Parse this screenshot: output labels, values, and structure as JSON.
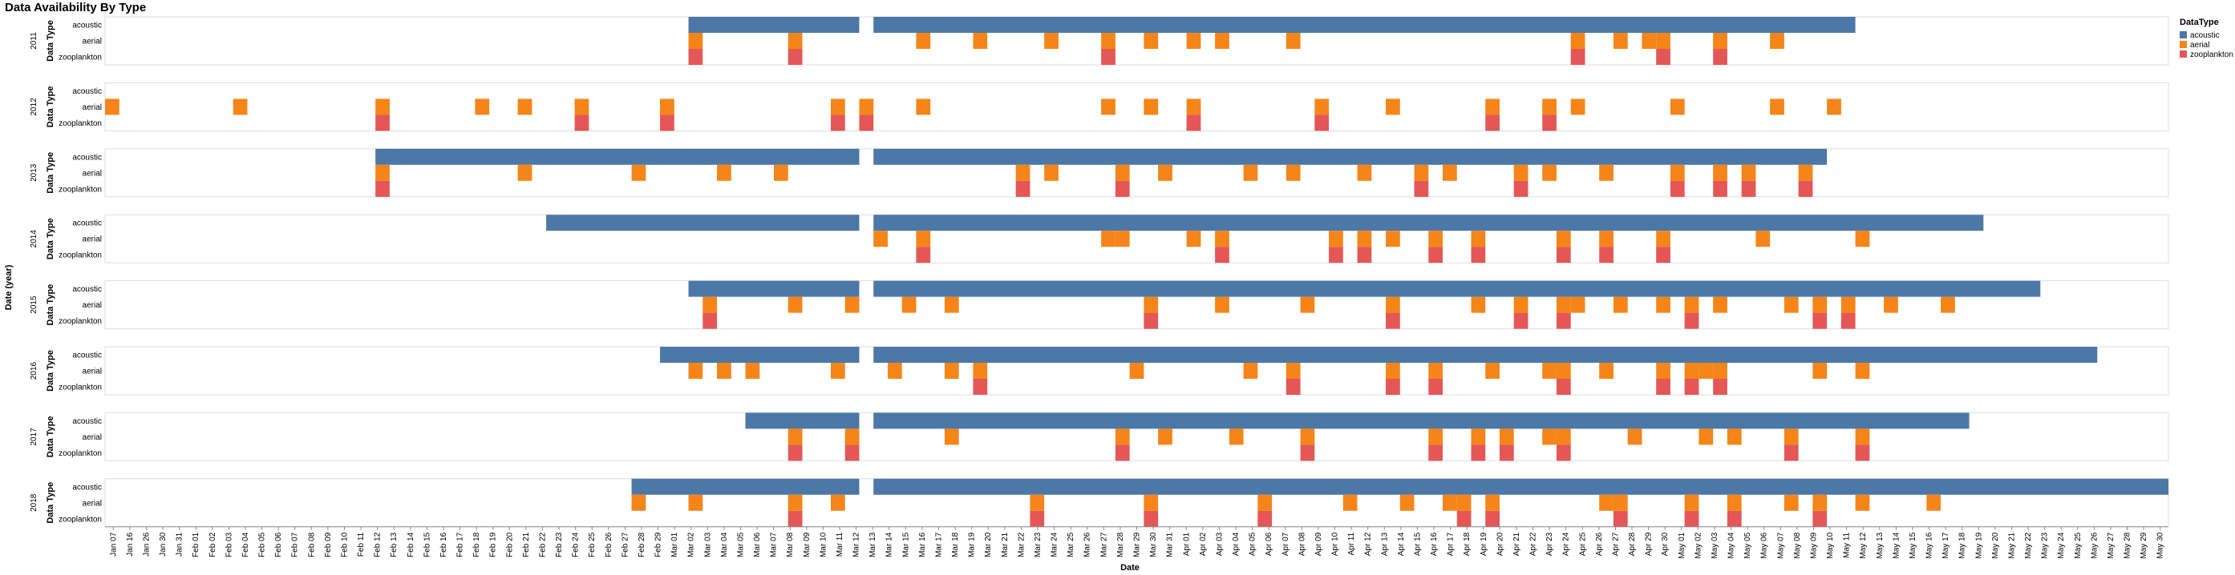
{
  "chart_data": {
    "type": "heatmap",
    "title": "Data Availability By Type",
    "xlabel": "Date",
    "row_axis_label": "Date (year)",
    "facet_axis_label": "Data Type",
    "data_types": [
      "acoustic",
      "aerial",
      "zooplankton"
    ],
    "legend": {
      "title": "DataType",
      "position": "top-right",
      "entries": [
        {
          "name": "acoustic",
          "color": "#4c78a8"
        },
        {
          "name": "aerial",
          "color": "#f58518"
        },
        {
          "name": "zooplankton",
          "color": "#e45756"
        }
      ]
    },
    "x_start": "2000-01-07",
    "x_end": "2000-05-30",
    "x_tick_labels": [
      "Jan 07",
      "Jan 16",
      "Jan 26",
      "Jan 30",
      "Jan 31",
      "Feb 01",
      "Feb 02",
      "Feb 03",
      "Feb 04",
      "Feb 05",
      "Feb 06",
      "Feb 07",
      "Feb 08",
      "Feb 09",
      "Feb 10",
      "Feb 11",
      "Feb 12",
      "Feb 13",
      "Feb 14",
      "Feb 15",
      "Feb 16",
      "Feb 17",
      "Feb 18",
      "Feb 19",
      "Feb 20",
      "Feb 21",
      "Feb 22",
      "Feb 23",
      "Feb 24",
      "Feb 25",
      "Feb 26",
      "Feb 27",
      "Feb 28",
      "Feb 29",
      "Mar 01",
      "Mar 02",
      "Mar 03",
      "Mar 04",
      "Mar 05",
      "Mar 06",
      "Mar 07",
      "Mar 08",
      "Mar 09",
      "Mar 10",
      "Mar 11",
      "Mar 12",
      "Mar 13",
      "Mar 14",
      "Mar 15",
      "Mar 16",
      "Mar 17",
      "Mar 18",
      "Mar 19",
      "Mar 20",
      "Mar 21",
      "Mar 22",
      "Mar 23",
      "Mar 24",
      "Mar 25",
      "Mar 26",
      "Mar 27",
      "Mar 28",
      "Mar 29",
      "Mar 30",
      "Mar 31",
      "Apr 01",
      "Apr 02",
      "Apr 03",
      "Apr 04",
      "Apr 05",
      "Apr 06",
      "Apr 07",
      "Apr 08",
      "Apr 09",
      "Apr 10",
      "Apr 11",
      "Apr 12",
      "Apr 13",
      "Apr 14",
      "Apr 15",
      "Apr 16",
      "Apr 17",
      "Apr 18",
      "Apr 19",
      "Apr 20",
      "Apr 21",
      "Apr 22",
      "Apr 23",
      "Apr 24",
      "Apr 25",
      "Apr 26",
      "Apr 27",
      "Apr 28",
      "Apr 29",
      "Apr 30",
      "May 01",
      "May 02",
      "May 03",
      "May 04",
      "May 05",
      "May 06",
      "May 07",
      "May 08",
      "May 09",
      "May 10",
      "May 11",
      "May 12",
      "May 13",
      "May 14",
      "May 15",
      "May 16",
      "May 17",
      "May 18",
      "May 19",
      "May 20",
      "May 21",
      "May 22",
      "May 23",
      "May 24",
      "May 25",
      "May 26",
      "May 27",
      "May 28",
      "May 29",
      "May 30"
    ],
    "facets": [
      {
        "year": "2011",
        "acoustic": [
          [
            "2000-02-17",
            "2000-02-28"
          ],
          [
            "2000-03-01",
            "2000-05-08"
          ]
        ],
        "aerial": [
          "2000-02-17",
          "2000-02-24",
          "2000-03-04",
          "2000-03-08",
          "2000-03-13",
          "2000-03-17",
          "2000-03-20",
          "2000-03-23",
          "2000-03-25",
          "2000-03-30",
          "2000-04-19",
          "2000-04-22",
          "2000-04-24",
          "2000-04-25",
          "2000-04-29",
          "2000-05-03"
        ],
        "zooplankton": [
          "2000-02-17",
          "2000-02-24",
          "2000-03-17",
          "2000-04-19",
          "2000-04-25",
          "2000-04-29"
        ]
      },
      {
        "year": "2012",
        "acoustic": [],
        "aerial": [
          "2000-01-07",
          "2000-01-16",
          "2000-01-26",
          "2000-02-02",
          "2000-02-05",
          "2000-02-09",
          "2000-02-15",
          "2000-02-27",
          "2000-02-29",
          "2000-03-04",
          "2000-03-17",
          "2000-03-20",
          "2000-03-23",
          "2000-04-01",
          "2000-04-06",
          "2000-04-13",
          "2000-04-17",
          "2000-04-19",
          "2000-04-26",
          "2000-05-03",
          "2000-05-07"
        ],
        "zooplankton": [
          "2000-01-26",
          "2000-02-09",
          "2000-02-15",
          "2000-02-27",
          "2000-02-29",
          "2000-03-23",
          "2000-04-01",
          "2000-04-13",
          "2000-04-17"
        ]
      },
      {
        "year": "2013",
        "acoustic": [
          [
            "2000-01-26",
            "2000-02-28"
          ],
          [
            "2000-03-01",
            "2000-05-06"
          ]
        ],
        "aerial": [
          "2000-01-26",
          "2000-02-05",
          "2000-02-13",
          "2000-02-19",
          "2000-02-23",
          "2000-03-11",
          "2000-03-13",
          "2000-03-18",
          "2000-03-21",
          "2000-03-27",
          "2000-03-30",
          "2000-04-04",
          "2000-04-08",
          "2000-04-10",
          "2000-04-15",
          "2000-04-17",
          "2000-04-21",
          "2000-04-26",
          "2000-04-29",
          "2000-05-01",
          "2000-05-05"
        ],
        "zooplankton": [
          "2000-01-26",
          "2000-03-11",
          "2000-03-18",
          "2000-04-08",
          "2000-04-15",
          "2000-04-26",
          "2000-04-29",
          "2000-05-01",
          "2000-05-05"
        ]
      },
      {
        "year": "2014",
        "acoustic": [
          [
            "2000-02-07",
            "2000-02-28"
          ],
          [
            "2000-03-01",
            "2000-05-17"
          ]
        ],
        "aerial": [
          "2000-03-01",
          "2000-03-04",
          "2000-03-17",
          "2000-03-18",
          "2000-03-23",
          "2000-03-25",
          "2000-04-02",
          "2000-04-04",
          "2000-04-06",
          "2000-04-09",
          "2000-04-12",
          "2000-04-18",
          "2000-04-21",
          "2000-04-25",
          "2000-05-02",
          "2000-05-09"
        ],
        "zooplankton": [
          "2000-03-04",
          "2000-03-25",
          "2000-04-02",
          "2000-04-04",
          "2000-04-09",
          "2000-04-12",
          "2000-04-18",
          "2000-04-21",
          "2000-04-25"
        ]
      },
      {
        "year": "2015",
        "acoustic": [
          [
            "2000-02-17",
            "2000-02-28"
          ],
          [
            "2000-03-01",
            "2000-05-21"
          ]
        ],
        "aerial": [
          "2000-02-18",
          "2000-02-24",
          "2000-02-28",
          "2000-03-03",
          "2000-03-06",
          "2000-03-20",
          "2000-03-25",
          "2000-03-31",
          "2000-04-06",
          "2000-04-12",
          "2000-04-15",
          "2000-04-18",
          "2000-04-19",
          "2000-04-22",
          "2000-04-25",
          "2000-04-27",
          "2000-04-29",
          "2000-05-04",
          "2000-05-06",
          "2000-05-08",
          "2000-05-11",
          "2000-05-15"
        ],
        "zooplankton": [
          "2000-02-18",
          "2000-03-20",
          "2000-04-06",
          "2000-04-15",
          "2000-04-18",
          "2000-04-27",
          "2000-05-06",
          "2000-05-08"
        ]
      },
      {
        "year": "2016",
        "acoustic": [
          [
            "2000-02-15",
            "2000-02-28"
          ],
          [
            "2000-03-01",
            "2000-05-25"
          ]
        ],
        "aerial": [
          "2000-02-17",
          "2000-02-19",
          "2000-02-21",
          "2000-02-27",
          "2000-03-02",
          "2000-03-06",
          "2000-03-08",
          "2000-03-19",
          "2000-03-27",
          "2000-03-30",
          "2000-04-06",
          "2000-04-09",
          "2000-04-13",
          "2000-04-17",
          "2000-04-18",
          "2000-04-21",
          "2000-04-25",
          "2000-04-27",
          "2000-04-28",
          "2000-04-29",
          "2000-05-06",
          "2000-05-09"
        ],
        "zooplankton": [
          "2000-03-08",
          "2000-03-30",
          "2000-04-06",
          "2000-04-09",
          "2000-04-18",
          "2000-04-25",
          "2000-04-27",
          "2000-04-29"
        ]
      },
      {
        "year": "2017",
        "acoustic": [
          [
            "2000-02-21",
            "2000-02-28"
          ],
          [
            "2000-03-01",
            "2000-05-16"
          ]
        ],
        "aerial": [
          "2000-02-24",
          "2000-02-28",
          "2000-03-06",
          "2000-03-18",
          "2000-03-21",
          "2000-03-26",
          "2000-03-31",
          "2000-04-09",
          "2000-04-12",
          "2000-04-14",
          "2000-04-17",
          "2000-04-18",
          "2000-04-23",
          "2000-04-28",
          "2000-04-30",
          "2000-05-04",
          "2000-05-09"
        ],
        "zooplankton": [
          "2000-02-24",
          "2000-02-28",
          "2000-03-18",
          "2000-03-31",
          "2000-04-09",
          "2000-04-12",
          "2000-04-14",
          "2000-04-18",
          "2000-05-04",
          "2000-05-09"
        ]
      },
      {
        "year": "2018",
        "acoustic": [
          [
            "2000-02-13",
            "2000-02-28"
          ],
          [
            "2000-03-01",
            "2000-05-30"
          ]
        ],
        "aerial": [
          "2000-02-13",
          "2000-02-17",
          "2000-02-24",
          "2000-02-27",
          "2000-03-12",
          "2000-03-20",
          "2000-03-28",
          "2000-04-03",
          "2000-04-07",
          "2000-04-10",
          "2000-04-11",
          "2000-04-13",
          "2000-04-21",
          "2000-04-22",
          "2000-04-27",
          "2000-04-30",
          "2000-05-04",
          "2000-05-06",
          "2000-05-09",
          "2000-05-14"
        ],
        "zooplankton": [
          "2000-02-24",
          "2000-03-12",
          "2000-03-20",
          "2000-03-28",
          "2000-04-11",
          "2000-04-13",
          "2000-04-22",
          "2000-04-27",
          "2000-04-30",
          "2000-05-06"
        ]
      }
    ]
  }
}
